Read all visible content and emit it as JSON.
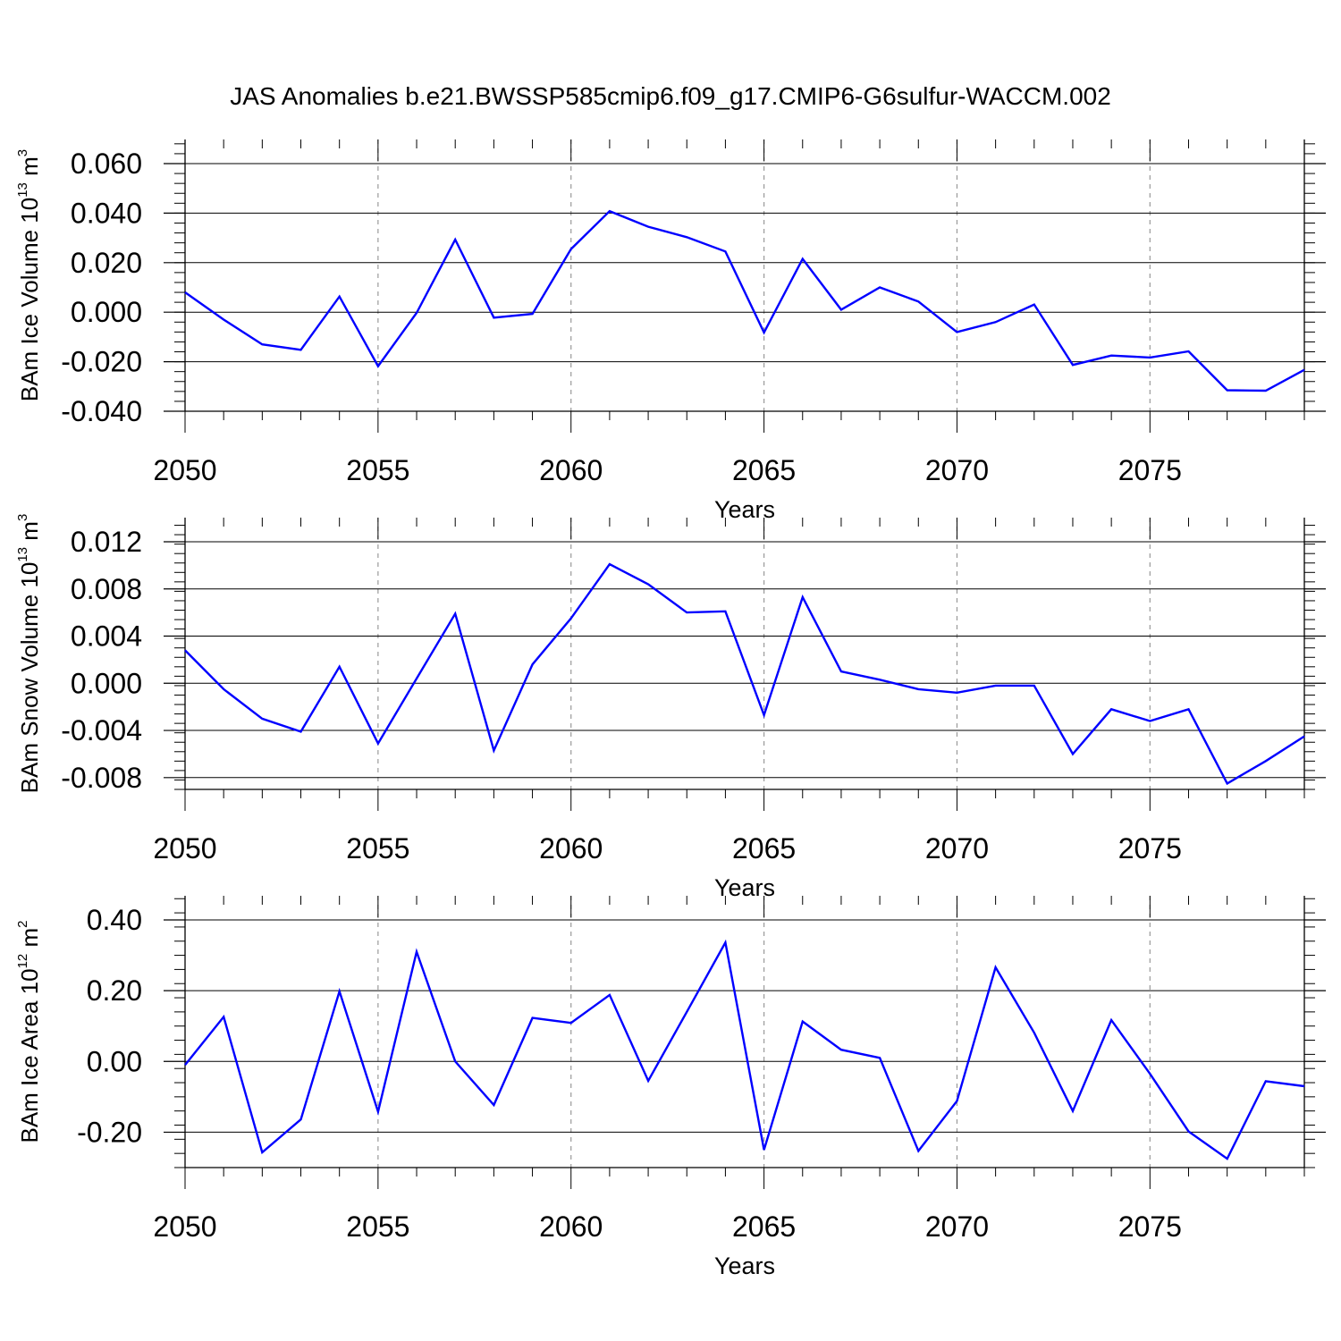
{
  "title": "JAS Anomalies b.e21.BWSSP585cmip6.f09_g17.CMIP6-G6sulfur-WACCM.002",
  "colors": {
    "line": "#0000ff",
    "grid": "#999999",
    "axis": "#000000"
  },
  "chart_data": [
    {
      "type": "line",
      "xlabel": "Years",
      "ylabel": {
        "text": "BAm Ice Volume 10",
        "exp": "13",
        "unit": " m",
        "unit_exp": "3"
      },
      "xlim": [
        2050,
        2079
      ],
      "ylim": [
        -0.04,
        0.06
      ],
      "x_ticks": [
        "2050",
        "2055",
        "2060",
        "2065",
        "2070",
        "2075"
      ],
      "y_ticks": [
        "0.060",
        "0.040",
        "0.020",
        "0.000",
        "-0.020",
        "-0.040"
      ],
      "y_tick_values": [
        0.06,
        0.04,
        0.02,
        0.0,
        -0.02,
        -0.04
      ],
      "grid": "vertical dashed at labeled years",
      "x": [
        2050,
        2051,
        2052,
        2053,
        2054,
        2055,
        2056,
        2057,
        2058,
        2059,
        2060,
        2061,
        2062,
        2063,
        2064,
        2065,
        2066,
        2067,
        2068,
        2069,
        2070,
        2071,
        2072,
        2073,
        2074,
        2075,
        2076,
        2077,
        2078,
        2079
      ],
      "values": [
        0.008,
        -0.003,
        -0.013,
        -0.0152,
        0.0063,
        -0.0218,
        -0.0003,
        0.0293,
        -0.0022,
        -0.0007,
        0.0255,
        0.0408,
        0.0345,
        0.0303,
        0.0245,
        -0.0082,
        0.0215,
        0.001,
        0.01,
        0.0043,
        -0.008,
        -0.004,
        0.0031,
        -0.0213,
        -0.0175,
        -0.0183,
        -0.0158,
        -0.0315,
        -0.0317,
        -0.0233
      ]
    },
    {
      "type": "line",
      "xlabel": "Years",
      "ylabel": {
        "text": "BAm Snow Volume 10",
        "exp": "13",
        "unit": " m",
        "unit_exp": "3"
      },
      "xlim": [
        2050,
        2079
      ],
      "ylim": [
        -0.009,
        0.012
      ],
      "x_ticks": [
        "2050",
        "2055",
        "2060",
        "2065",
        "2070",
        "2075"
      ],
      "y_ticks": [
        "0.012",
        "0.008",
        "0.004",
        "0.000",
        "-0.004",
        "-0.008"
      ],
      "y_tick_values": [
        0.012,
        0.008,
        0.004,
        0.0,
        -0.004,
        -0.008
      ],
      "grid": "vertical dashed at labeled years",
      "x": [
        2050,
        2051,
        2052,
        2053,
        2054,
        2055,
        2056,
        2057,
        2058,
        2059,
        2060,
        2061,
        2062,
        2063,
        2064,
        2065,
        2066,
        2067,
        2068,
        2069,
        2070,
        2071,
        2072,
        2073,
        2074,
        2075,
        2076,
        2077,
        2078,
        2079
      ],
      "values": [
        0.0028,
        -0.0005,
        -0.003,
        -0.0041,
        0.0014,
        -0.0051,
        0.0004,
        0.0059,
        -0.0057,
        0.0016,
        0.0055,
        0.0101,
        0.0084,
        0.006,
        0.0061,
        -0.0027,
        0.0073,
        0.001,
        0.0003,
        -0.0005,
        -0.0008,
        -0.0002,
        -0.0002,
        -0.006,
        -0.0022,
        -0.0032,
        -0.0022,
        -0.0085,
        -0.0066,
        -0.0045
      ]
    },
    {
      "type": "line",
      "xlabel": "Years",
      "ylabel": {
        "text": "BAm Ice Area 10",
        "exp": "12",
        "unit": " m",
        "unit_exp": "2"
      },
      "xlim": [
        2050,
        2079
      ],
      "ylim": [
        -0.3,
        0.4
      ],
      "x_ticks": [
        "2050",
        "2055",
        "2060",
        "2065",
        "2070",
        "2075"
      ],
      "y_ticks": [
        "0.40",
        "0.20",
        "0.00",
        "-0.20"
      ],
      "y_tick_values": [
        0.4,
        0.2,
        0.0,
        -0.2
      ],
      "grid": "vertical dashed at labeled years",
      "x": [
        2050,
        2051,
        2052,
        2053,
        2054,
        2055,
        2056,
        2057,
        2058,
        2059,
        2060,
        2061,
        2062,
        2063,
        2064,
        2065,
        2066,
        2067,
        2068,
        2069,
        2070,
        2071,
        2072,
        2073,
        2074,
        2075,
        2076,
        2077,
        2078,
        2079
      ],
      "values": [
        -0.01,
        0.126,
        -0.257,
        -0.164,
        0.198,
        -0.142,
        0.31,
        0.0,
        -0.123,
        0.123,
        0.109,
        0.188,
        -0.055,
        0.14,
        0.336,
        -0.25,
        0.113,
        0.033,
        0.01,
        -0.253,
        -0.112,
        0.266,
        0.081,
        -0.14,
        0.117,
        -0.035,
        -0.198,
        -0.275,
        -0.056,
        -0.07
      ]
    }
  ]
}
